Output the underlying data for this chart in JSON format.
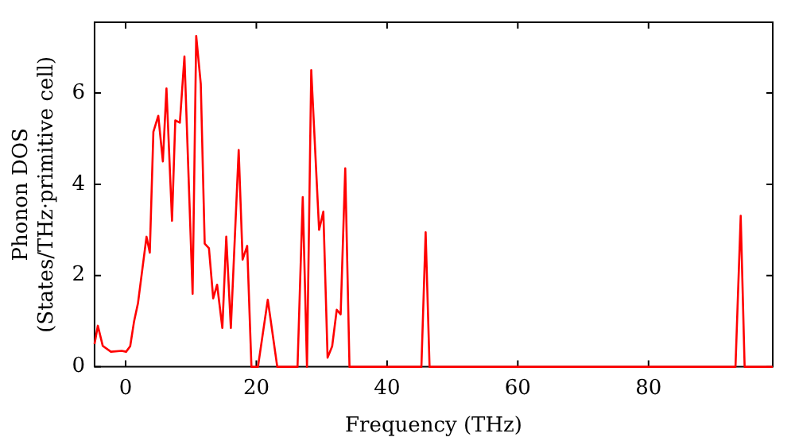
{
  "chart_data": {
    "type": "line",
    "xlabel": "Frequency (THz)",
    "ylabel": "Phonon DOS\n(States/THz·primitive cell)",
    "xlim": [
      -4.75,
      99
    ],
    "ylim": [
      0,
      7.55
    ],
    "xticks": [
      0,
      20,
      40,
      60,
      80
    ],
    "yticks": [
      0,
      2,
      4,
      6
    ],
    "grid": false,
    "legend": false,
    "marker": "none",
    "line_style": "solid",
    "series": [
      {
        "color": "#ff0000",
        "x": [
          -4.75,
          -4.25,
          -3.5,
          -2.25,
          -0.6,
          0.08,
          0.7,
          1.3,
          1.9,
          3.2,
          3.7,
          4.25,
          5,
          5.7,
          6.25,
          7.1,
          7.6,
          8.3,
          9,
          10.25,
          10.8,
          11.5,
          12.1,
          12.75,
          13.4,
          14,
          14.8,
          15.4,
          16.1,
          17.3,
          17.9,
          18.6,
          19.25,
          20.25,
          21.75,
          23.2,
          26.3,
          27.1,
          27.75,
          28.4,
          29.6,
          30.25,
          30.9,
          31.6,
          32.3,
          32.9,
          33.6,
          34.25,
          45.25,
          45.9,
          46.5,
          93.3,
          94.1,
          94.7,
          99
        ],
        "values": [
          0.5,
          0.9,
          0.46,
          0.33,
          0.35,
          0.33,
          0.45,
          1.0,
          1.4,
          2.85,
          2.5,
          5.15,
          5.5,
          4.5,
          6.1,
          3.2,
          5.4,
          5.35,
          6.8,
          1.6,
          7.25,
          6.2,
          2.7,
          2.6,
          1.5,
          1.8,
          0.85,
          2.85,
          0.85,
          4.75,
          2.35,
          2.65,
          0,
          0,
          1.47,
          0,
          0,
          3.72,
          0,
          6.5,
          3,
          3.4,
          0.2,
          0.45,
          1.25,
          1.15,
          4.35,
          0,
          0,
          2.95,
          0,
          0,
          3.31,
          0,
          0
        ]
      }
    ]
  }
}
